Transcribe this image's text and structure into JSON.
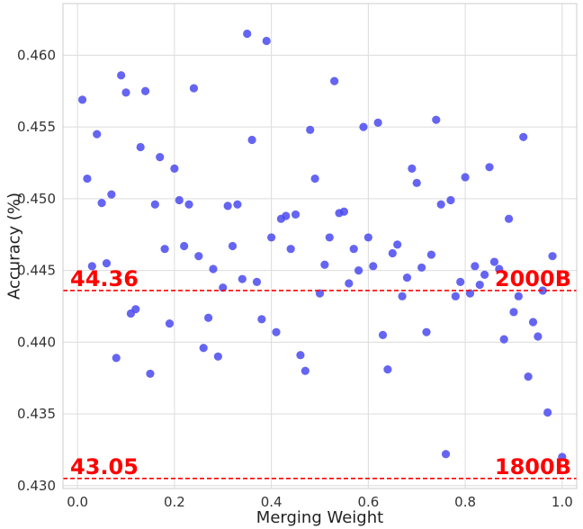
{
  "chart_data": {
    "type": "scatter",
    "xlabel": "Merging Weight",
    "ylabel": "Accuracy (%)",
    "xlim": [
      -0.03,
      1.03
    ],
    "ylim": [
      0.4298,
      0.4636
    ],
    "xticks": [
      0.0,
      0.2,
      0.4,
      0.6,
      0.8,
      1.0
    ],
    "xtick_labels": [
      "0.0",
      "0.2",
      "0.4",
      "0.6",
      "0.8",
      "1.0"
    ],
    "yticks": [
      0.43,
      0.435,
      0.44,
      0.445,
      0.45,
      0.455,
      0.46
    ],
    "ytick_labels": [
      "0.430",
      "0.435",
      "0.440",
      "0.445",
      "0.450",
      "0.455",
      "0.460"
    ],
    "grid": true,
    "point_color": "#4a4af0",
    "reference_color": "#ff0000",
    "reference_lines": [
      {
        "y": 0.4436,
        "left_label": "44.36",
        "right_label": "2000B"
      },
      {
        "y": 0.4305,
        "left_label": "43.05",
        "right_label": "1800B"
      }
    ],
    "points": [
      [
        0.01,
        0.4569
      ],
      [
        0.02,
        0.4514
      ],
      [
        0.03,
        0.4453
      ],
      [
        0.04,
        0.4545
      ],
      [
        0.05,
        0.4497
      ],
      [
        0.06,
        0.4455
      ],
      [
        0.07,
        0.4503
      ],
      [
        0.08,
        0.4389
      ],
      [
        0.09,
        0.4586
      ],
      [
        0.1,
        0.4574
      ],
      [
        0.11,
        0.442
      ],
      [
        0.12,
        0.4423
      ],
      [
        0.13,
        0.4536
      ],
      [
        0.14,
        0.4575
      ],
      [
        0.15,
        0.4378
      ],
      [
        0.16,
        0.4496
      ],
      [
        0.17,
        0.4529
      ],
      [
        0.18,
        0.4465
      ],
      [
        0.19,
        0.4413
      ],
      [
        0.2,
        0.4521
      ],
      [
        0.21,
        0.4499
      ],
      [
        0.22,
        0.4467
      ],
      [
        0.23,
        0.4496
      ],
      [
        0.24,
        0.4577
      ],
      [
        0.25,
        0.446
      ],
      [
        0.26,
        0.4396
      ],
      [
        0.27,
        0.4417
      ],
      [
        0.28,
        0.4451
      ],
      [
        0.29,
        0.439
      ],
      [
        0.3,
        0.4438
      ],
      [
        0.31,
        0.4495
      ],
      [
        0.32,
        0.4467
      ],
      [
        0.33,
        0.4496
      ],
      [
        0.34,
        0.4444
      ],
      [
        0.35,
        0.4615
      ],
      [
        0.36,
        0.4541
      ],
      [
        0.37,
        0.4442
      ],
      [
        0.38,
        0.4416
      ],
      [
        0.39,
        0.461
      ],
      [
        0.4,
        0.4473
      ],
      [
        0.41,
        0.4407
      ],
      [
        0.42,
        0.4486
      ],
      [
        0.43,
        0.4488
      ],
      [
        0.44,
        0.4465
      ],
      [
        0.45,
        0.4489
      ],
      [
        0.46,
        0.4391
      ],
      [
        0.47,
        0.438
      ],
      [
        0.48,
        0.4548
      ],
      [
        0.49,
        0.4514
      ],
      [
        0.5,
        0.4434
      ],
      [
        0.51,
        0.4454
      ],
      [
        0.52,
        0.4473
      ],
      [
        0.53,
        0.4582
      ],
      [
        0.54,
        0.449
      ],
      [
        0.55,
        0.4491
      ],
      [
        0.56,
        0.4441
      ],
      [
        0.57,
        0.4465
      ],
      [
        0.58,
        0.445
      ],
      [
        0.59,
        0.455
      ],
      [
        0.6,
        0.4473
      ],
      [
        0.61,
        0.4453
      ],
      [
        0.62,
        0.4553
      ],
      [
        0.63,
        0.4405
      ],
      [
        0.64,
        0.4381
      ],
      [
        0.65,
        0.4462
      ],
      [
        0.66,
        0.4468
      ],
      [
        0.67,
        0.4432
      ],
      [
        0.68,
        0.4445
      ],
      [
        0.69,
        0.4521
      ],
      [
        0.7,
        0.4511
      ],
      [
        0.71,
        0.4452
      ],
      [
        0.72,
        0.4407
      ],
      [
        0.73,
        0.4461
      ],
      [
        0.74,
        0.4555
      ],
      [
        0.75,
        0.4496
      ],
      [
        0.76,
        0.4322
      ],
      [
        0.77,
        0.4499
      ],
      [
        0.78,
        0.4432
      ],
      [
        0.79,
        0.4442
      ],
      [
        0.8,
        0.4515
      ],
      [
        0.81,
        0.4434
      ],
      [
        0.82,
        0.4453
      ],
      [
        0.83,
        0.444
      ],
      [
        0.84,
        0.4447
      ],
      [
        0.85,
        0.4522
      ],
      [
        0.86,
        0.4456
      ],
      [
        0.87,
        0.4451
      ],
      [
        0.88,
        0.4402
      ],
      [
        0.89,
        0.4486
      ],
      [
        0.9,
        0.4421
      ],
      [
        0.91,
        0.4432
      ],
      [
        0.92,
        0.4543
      ],
      [
        0.93,
        0.4376
      ],
      [
        0.94,
        0.4414
      ],
      [
        0.95,
        0.4404
      ],
      [
        0.96,
        0.4436
      ],
      [
        0.97,
        0.4351
      ],
      [
        0.98,
        0.446
      ],
      [
        1.0,
        0.432
      ]
    ]
  }
}
